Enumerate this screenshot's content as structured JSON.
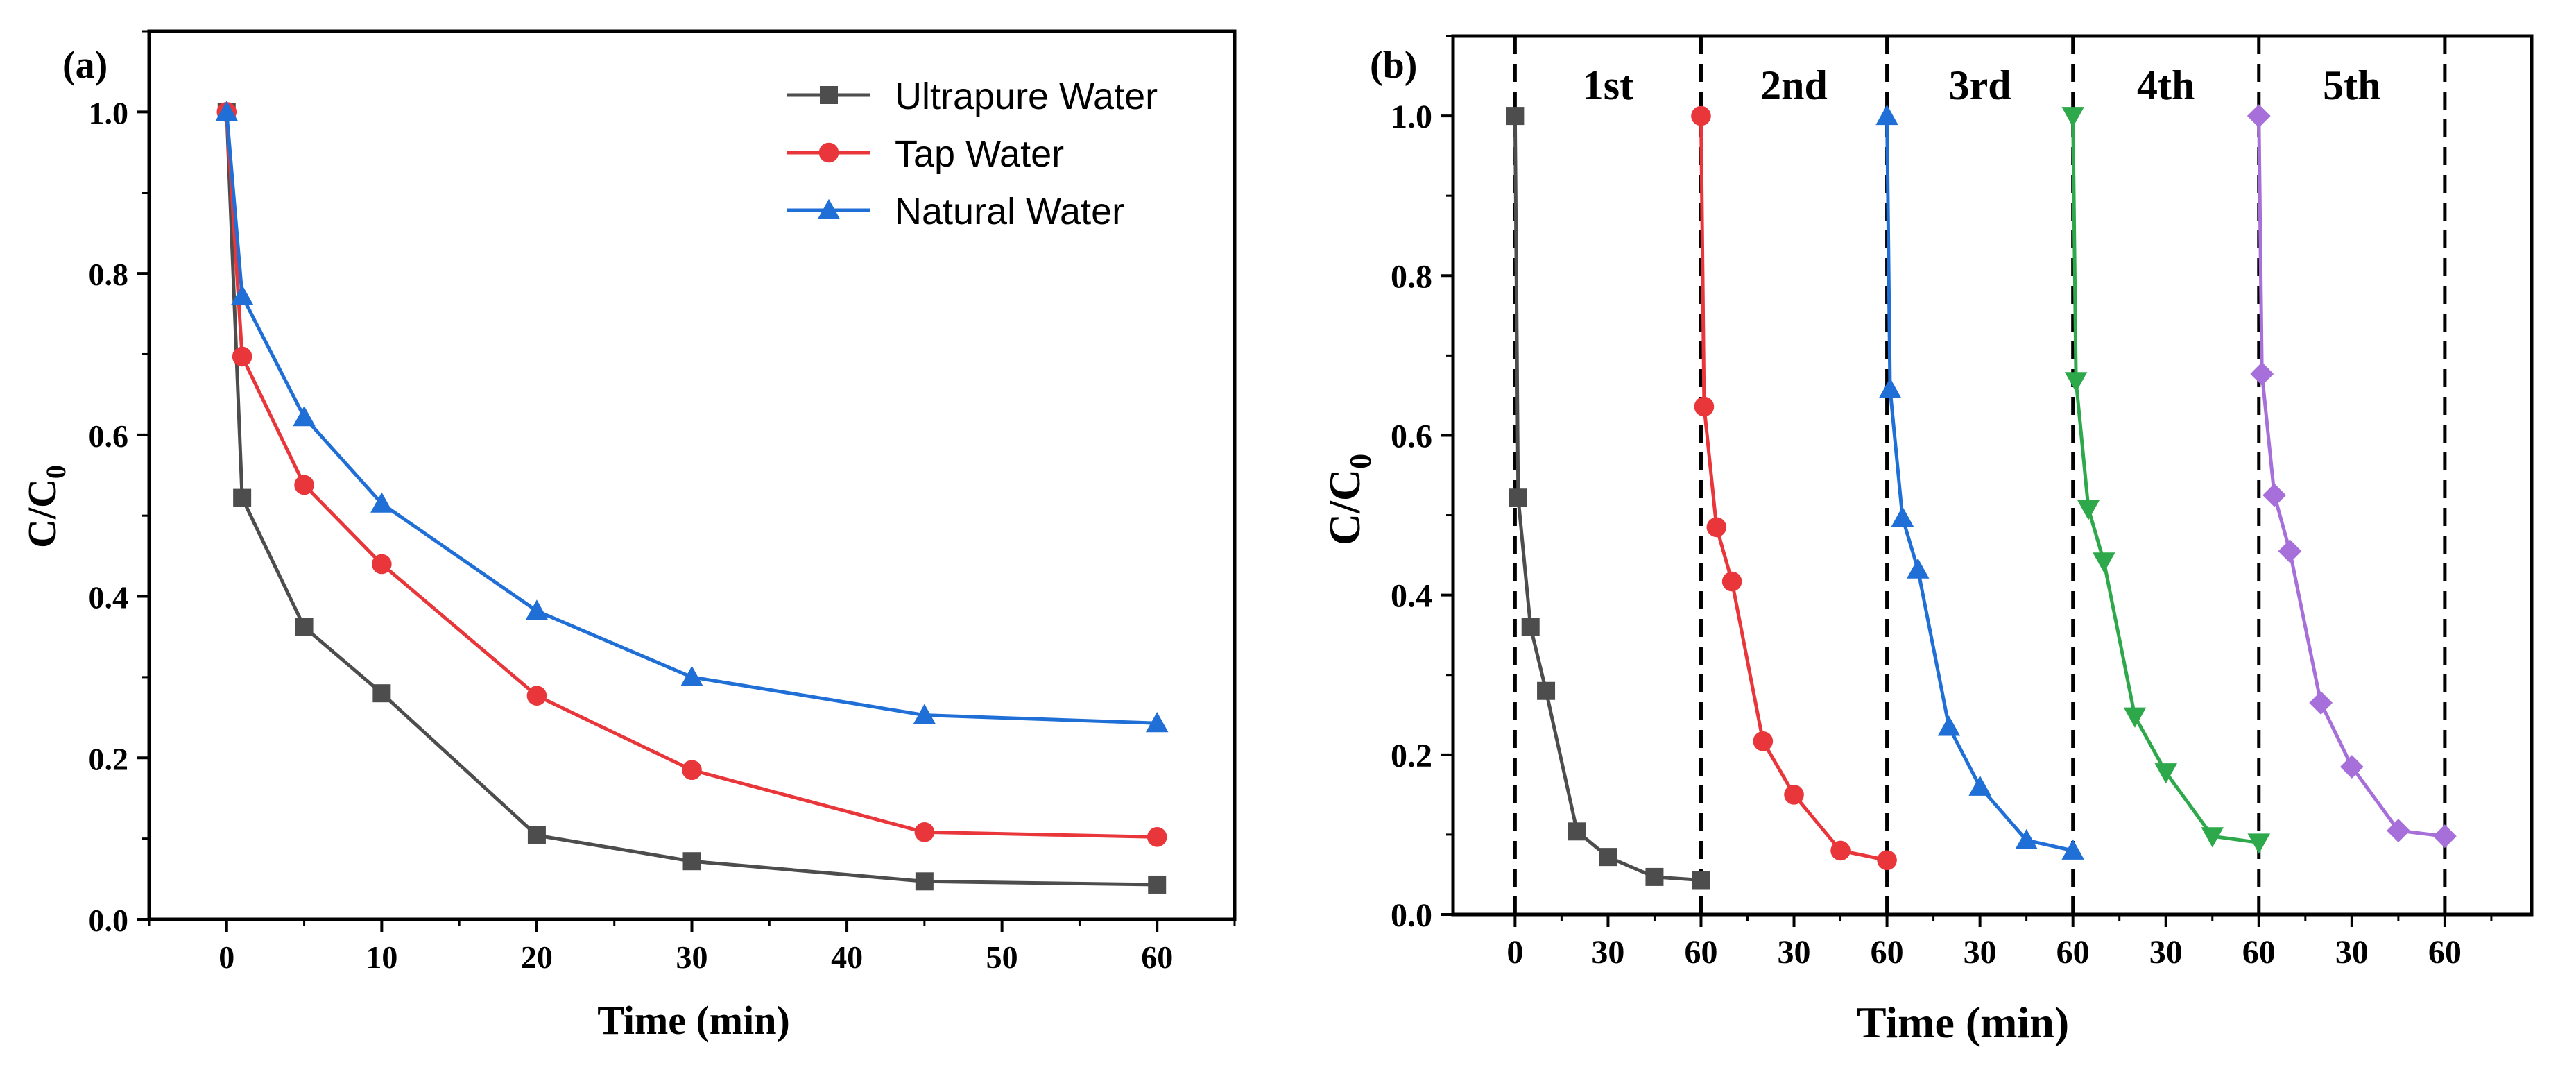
{
  "chart_data": [
    {
      "type": "line",
      "panel_label": "(a)",
      "title": "",
      "xlabel": "Time (min)",
      "ylabel_main": "C/C",
      "ylabel_sub": "0",
      "xlim": [
        -5,
        65
      ],
      "ylim": [
        0,
        1.1
      ],
      "xticks": [
        0,
        10,
        20,
        30,
        40,
        50,
        60
      ],
      "xtick_labels": [
        "0",
        "10",
        "20",
        "30",
        "40",
        "50",
        "60"
      ],
      "yticks": [
        0.0,
        0.2,
        0.4,
        0.6,
        0.8,
        1.0
      ],
      "ytick_labels": [
        "0.0",
        "0.2",
        "0.4",
        "0.6",
        "0.8",
        "1.0"
      ],
      "grid": false,
      "legend_position": "top-right",
      "x": [
        0,
        1,
        5,
        10,
        20,
        30,
        45,
        60
      ],
      "series": [
        {
          "name": "Ultrapure Water",
          "marker": "square",
          "color": "#4d4d4d",
          "values": [
            1.0,
            0.522,
            0.362,
            0.28,
            0.104,
            0.072,
            0.047,
            0.043
          ]
        },
        {
          "name": "Tap Water",
          "marker": "circle",
          "color": "#e8363b",
          "values": [
            1.0,
            0.697,
            0.538,
            0.44,
            0.277,
            0.185,
            0.108,
            0.102
          ]
        },
        {
          "name": "Natural Water",
          "marker": "triangle-up",
          "color": "#1f6fd6",
          "values": [
            1.0,
            0.772,
            0.622,
            0.515,
            0.382,
            0.3,
            0.253,
            0.243
          ]
        }
      ]
    },
    {
      "type": "line",
      "panel_label": "(b)",
      "title": "",
      "xlabel": "Time (min)",
      "ylabel_main": "C/C",
      "ylabel_sub": "0",
      "xlim": [
        -20,
        328
      ],
      "ylim": [
        0,
        1.1
      ],
      "xticks": [
        0,
        30,
        60,
        90,
        120,
        150,
        180,
        210,
        240,
        270,
        300
      ],
      "xtick_labels": [
        "0",
        "30",
        "60",
        "30",
        "60",
        "30",
        "60",
        "30",
        "60",
        "30",
        "60"
      ],
      "yticks": [
        0.0,
        0.2,
        0.4,
        0.6,
        0.8,
        1.0
      ],
      "ytick_labels": [
        "0.0",
        "0.2",
        "0.4",
        "0.6",
        "0.8",
        "1.0"
      ],
      "grid": false,
      "cycle_boundaries": [
        0,
        60,
        120,
        180,
        240,
        300
      ],
      "cycle_labels": [
        "1st",
        "2nd",
        "3rd",
        "4th",
        "5th"
      ],
      "series": [
        {
          "name": "1st",
          "marker": "square",
          "color": "#4d4d4d",
          "x": [
            0,
            1,
            5,
            10,
            20,
            30,
            45,
            60
          ],
          "values": [
            1.0,
            0.522,
            0.36,
            0.28,
            0.104,
            0.072,
            0.047,
            0.043
          ]
        },
        {
          "name": "2nd",
          "marker": "circle",
          "color": "#e8363b",
          "x": [
            60,
            61,
            65,
            70,
            80,
            90,
            105,
            120
          ],
          "values": [
            1.0,
            0.636,
            0.485,
            0.417,
            0.217,
            0.15,
            0.08,
            0.068
          ]
        },
        {
          "name": "3rd",
          "marker": "triangle-up",
          "color": "#1f6fd6",
          "x": [
            120,
            121,
            125,
            130,
            140,
            150,
            165,
            180
          ],
          "values": [
            1.0,
            0.658,
            0.497,
            0.432,
            0.235,
            0.16,
            0.093,
            0.08
          ]
        },
        {
          "name": "4th",
          "marker": "triangle-down",
          "color": "#2da84a",
          "x": [
            180,
            181,
            185,
            190,
            200,
            210,
            225,
            240
          ],
          "values": [
            1.0,
            0.668,
            0.508,
            0.442,
            0.248,
            0.178,
            0.098,
            0.09
          ]
        },
        {
          "name": "5th",
          "marker": "diamond",
          "color": "#a66fd9",
          "x": [
            240,
            241,
            245,
            250,
            260,
            270,
            285,
            300
          ],
          "values": [
            1.0,
            0.677,
            0.525,
            0.455,
            0.265,
            0.185,
            0.105,
            0.098
          ]
        }
      ]
    }
  ]
}
